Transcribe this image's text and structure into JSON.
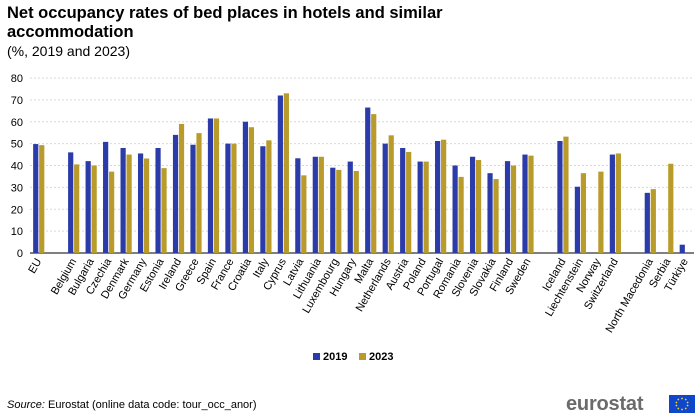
{
  "chart_data": {
    "type": "bar",
    "title": "Net occupancy rates of bed places in hotels and similar accommodation",
    "subtitle": "(%, 2019 and 2023)",
    "ylim": [
      0,
      80
    ],
    "yticks": [
      0,
      10,
      20,
      30,
      40,
      50,
      60,
      70,
      80
    ],
    "grid": true,
    "legend_position": "bottom-center",
    "categories": [
      "EU",
      "Belgium",
      "Bulgaria",
      "Czechia",
      "Denmark",
      "Germany",
      "Estonia",
      "Ireland",
      "Greece",
      "Spain",
      "France",
      "Croatia",
      "Italy",
      "Cyprus",
      "Latvia",
      "Lithuania",
      "Luxembourg",
      "Hungary",
      "Malta",
      "Netherlands",
      "Austria",
      "Poland",
      "Portugal",
      "Romania",
      "Slovenia",
      "Slovakia",
      "Finland",
      "Sweden",
      "Iceland",
      "Liechtenstein",
      "Norway",
      "Switzerland",
      "North Macedonia",
      "Serbia",
      "Türkiye"
    ],
    "series": [
      {
        "name": "2019",
        "color": "#2b3ba8",
        "values": [
          49.8,
          46.0,
          42.0,
          50.8,
          48.0,
          45.5,
          48.0,
          54.0,
          49.5,
          61.5,
          50.0,
          60.0,
          48.8,
          72.0,
          43.3,
          44.0,
          39.0,
          41.8,
          66.5,
          50.0,
          48.0,
          41.8,
          51.2,
          40.0,
          44.0,
          36.5,
          42.0,
          45.0,
          51.2,
          30.3,
          null,
          45.0,
          27.5,
          null,
          3.8
        ]
      },
      {
        "name": "2023",
        "color": "#b99b2b",
        "values": [
          49.3,
          40.5,
          40.0,
          37.2,
          45.0,
          43.2,
          38.8,
          59.0,
          54.8,
          61.5,
          50.0,
          57.5,
          51.5,
          73.0,
          35.5,
          44.0,
          38.0,
          37.5,
          63.5,
          53.8,
          46.2,
          41.8,
          51.8,
          34.8,
          42.5,
          33.8,
          40.0,
          44.5,
          53.2,
          36.5,
          37.2,
          45.5,
          29.2,
          40.8,
          null
        ]
      }
    ]
  },
  "source": {
    "label": "Source:",
    "text": "Eurostat (online data code: tour_occ_anor)"
  },
  "logo": {
    "text": "eurostat"
  }
}
